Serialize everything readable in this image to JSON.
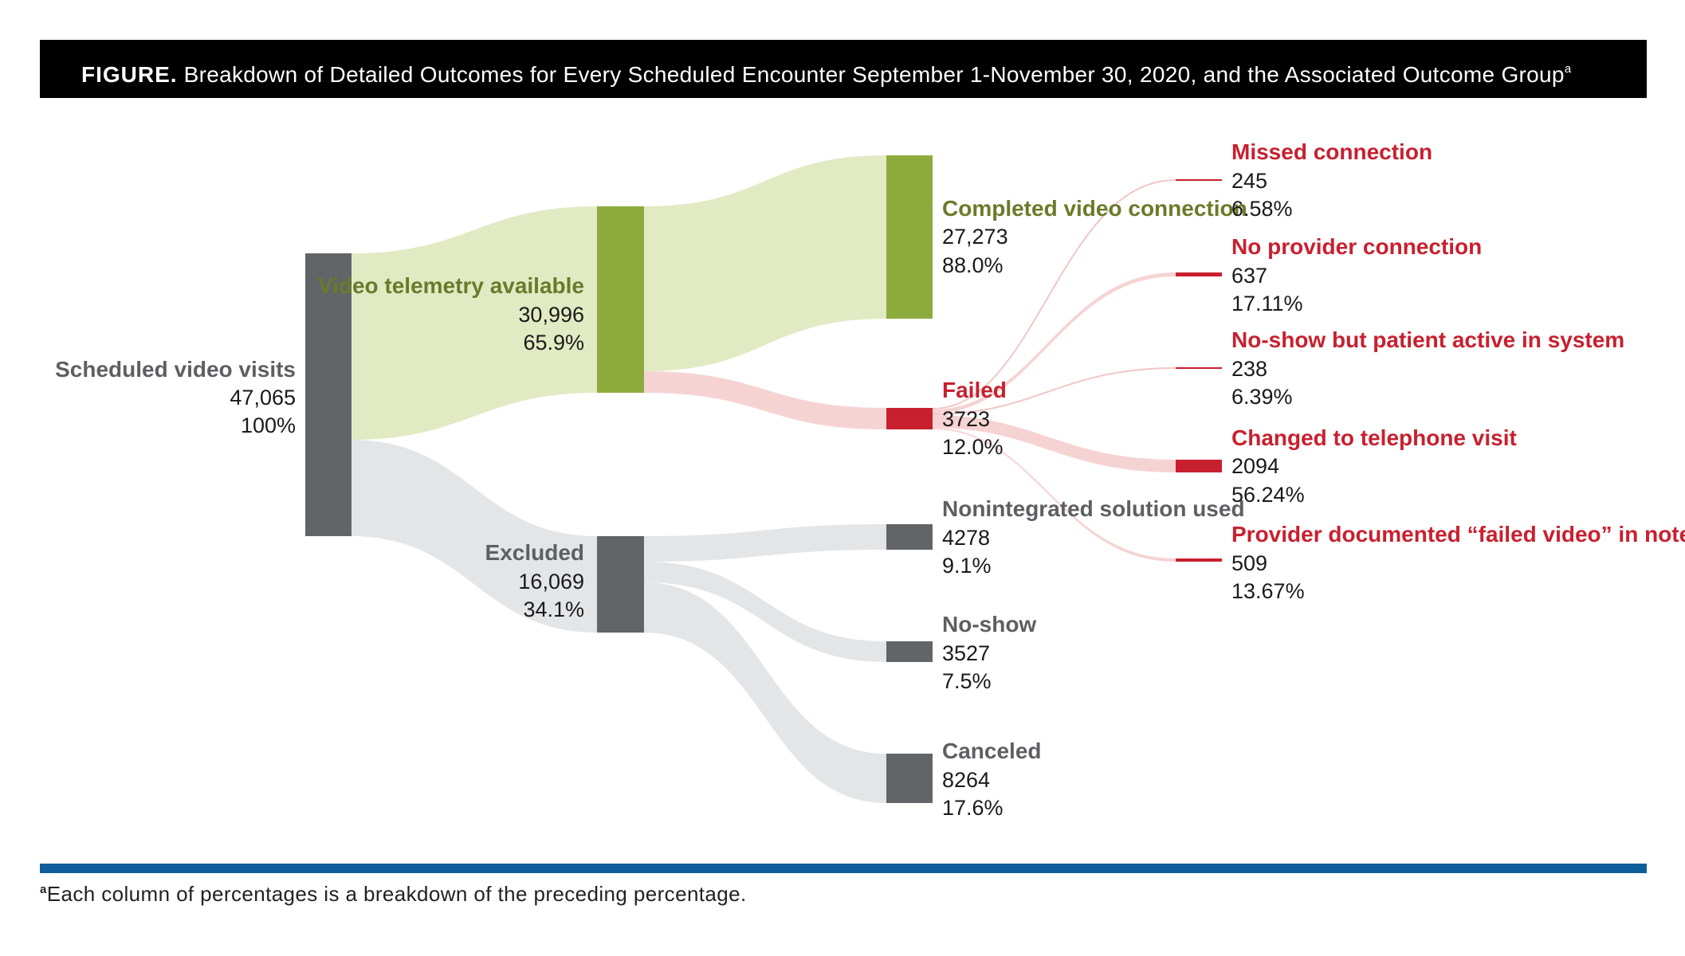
{
  "header": {
    "label": "FIGURE.",
    "title": "Breakdown of Detailed Outcomes for Every Scheduled Encounter September 1-November 30, 2020, and the Associated Outcome Group",
    "superscript": "a"
  },
  "colors": {
    "gray": "#636468",
    "green": "#8dab3c",
    "light_green": "#e2eac3",
    "red": "#c8202f",
    "light_red": "#f6d3d3",
    "light_gray": "#e4e5e6",
    "rule_blue": "#0f5d9a"
  },
  "nodes": {
    "scheduled": {
      "name": "Scheduled video visits",
      "value": "47,065",
      "pct": "100%"
    },
    "video_telemetry": {
      "name": "Video telemetry available",
      "value": "30,996",
      "pct": "65.9%"
    },
    "excluded": {
      "name": "Excluded",
      "value": "16,069",
      "pct": "34.1%"
    },
    "completed": {
      "name": "Completed video connection",
      "value": "27,273",
      "pct": "88.0%"
    },
    "failed": {
      "name": "Failed",
      "value": "3723",
      "pct": "12.0%"
    },
    "nonintegrated": {
      "name": "Nonintegrated solution used",
      "value": "4278",
      "pct": "9.1%"
    },
    "noshow": {
      "name": "No-show",
      "value": "3527",
      "pct": "7.5%"
    },
    "canceled": {
      "name": "Canceled",
      "value": "8264",
      "pct": "17.6%"
    },
    "missed": {
      "name": "Missed connection",
      "value": "245",
      "pct": "6.58%"
    },
    "no_provider": {
      "name": "No provider connection",
      "value": "637",
      "pct": "17.11%"
    },
    "noshow_active": {
      "name": "No-show but patient active in system",
      "value": "238",
      "pct": "6.39%"
    },
    "telephone": {
      "name": "Changed to telephone visit",
      "value": "2094",
      "pct": "56.24%"
    },
    "documented": {
      "name": "Provider documented “failed video” in note",
      "value": "509",
      "pct": "13.67%"
    }
  },
  "footnote": {
    "superscript": "a",
    "text": "Each column of percentages is a breakdown of the preceding percentage."
  }
}
